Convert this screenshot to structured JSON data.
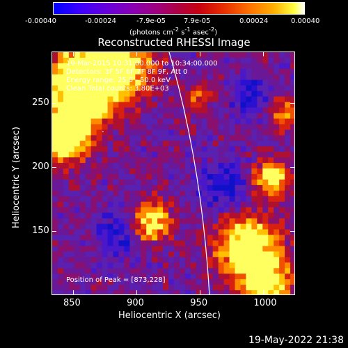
{
  "colorbar": {
    "ticks": [
      "-0.00040",
      "-0.00024",
      "-7.9e-05",
      "7.9e-05",
      "0.00024",
      "0.00040"
    ],
    "units_prefix": "(photons cm",
    "units_exp1": "-2",
    "units_mid": " s",
    "units_exp2": "-1",
    "units_mid2": " asec",
    "units_exp3": "-2",
    "units_suffix": ")"
  },
  "chart_data": {
    "type": "heatmap",
    "title": "Reconstructed RHESSI Image",
    "xlabel": "Heliocentric X (arcsec)",
    "ylabel": "Heliocentric Y (arcsec)",
    "xlim": [
      833,
      1025
    ],
    "ylim": [
      100,
      290
    ],
    "xticks": [
      850,
      900,
      950,
      1000
    ],
    "yticks": [
      150,
      200,
      250
    ],
    "xtick_labels": [
      "850",
      "900",
      "950",
      "1000"
    ],
    "ytick_labels": [
      "150",
      "200",
      "250"
    ],
    "colorbar_range": [
      -0.0004,
      0.0004
    ],
    "annotations": [
      "19-Mar-2015 10:31:00.000 to 10:34:00.000",
      "Detectors: 3F 5F 6F 7F 8F 9F, Att 0",
      "Energy range: 25.0 - 50.0 keV",
      "Clean    Total counts: 3.80E+03"
    ],
    "peak_label": "Position of Peak = [873,228]",
    "peak": [
      873,
      228
    ]
  },
  "footer": {
    "datestamp": "19-May-2022 21:38"
  },
  "colors": {
    "background": "#000000",
    "text": "#ffffff"
  }
}
